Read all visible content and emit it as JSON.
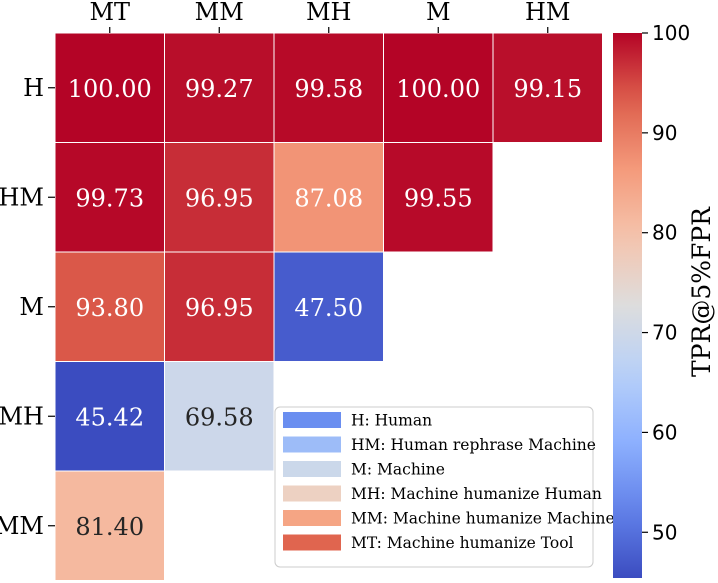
{
  "chart_data": {
    "type": "heatmap",
    "title": "",
    "columns": [
      "MT",
      "MM",
      "MH",
      "M",
      "HM"
    ],
    "rows": [
      "H",
      "HM",
      "M",
      "MH",
      "MM"
    ],
    "values": [
      [
        100.0,
        99.27,
        99.58,
        100.0,
        99.15
      ],
      [
        99.73,
        96.95,
        87.08,
        99.55,
        null
      ],
      [
        93.8,
        96.95,
        47.5,
        null,
        null
      ],
      [
        45.42,
        69.58,
        null,
        null,
        null
      ],
      [
        81.4,
        null,
        null,
        null,
        null
      ]
    ],
    "colorbar": {
      "label": "TPR@5%FPR",
      "range": [
        45.42,
        100
      ],
      "ticks": [
        "50",
        "60",
        "70",
        "80",
        "90",
        "100"
      ],
      "tick_values": [
        50,
        60,
        70,
        80,
        90,
        100
      ],
      "colormap": "coolwarm"
    },
    "legend": {
      "placement": "lower-right",
      "items": [
        {
          "label": "H: Human",
          "color": "#6a8ef0"
        },
        {
          "label": "HM: Human rephrase Machine",
          "color": "#9dbcf8"
        },
        {
          "label": "M: Machine",
          "color": "#cbd8ea"
        },
        {
          "label": "MH: Machine humanize Human",
          "color": "#edd1c2"
        },
        {
          "label": "MM: Machine humanize Machine",
          "color": "#f5a584"
        },
        {
          "label": "MT: Machine humanize Tool",
          "color": "#e0654f"
        }
      ]
    }
  }
}
